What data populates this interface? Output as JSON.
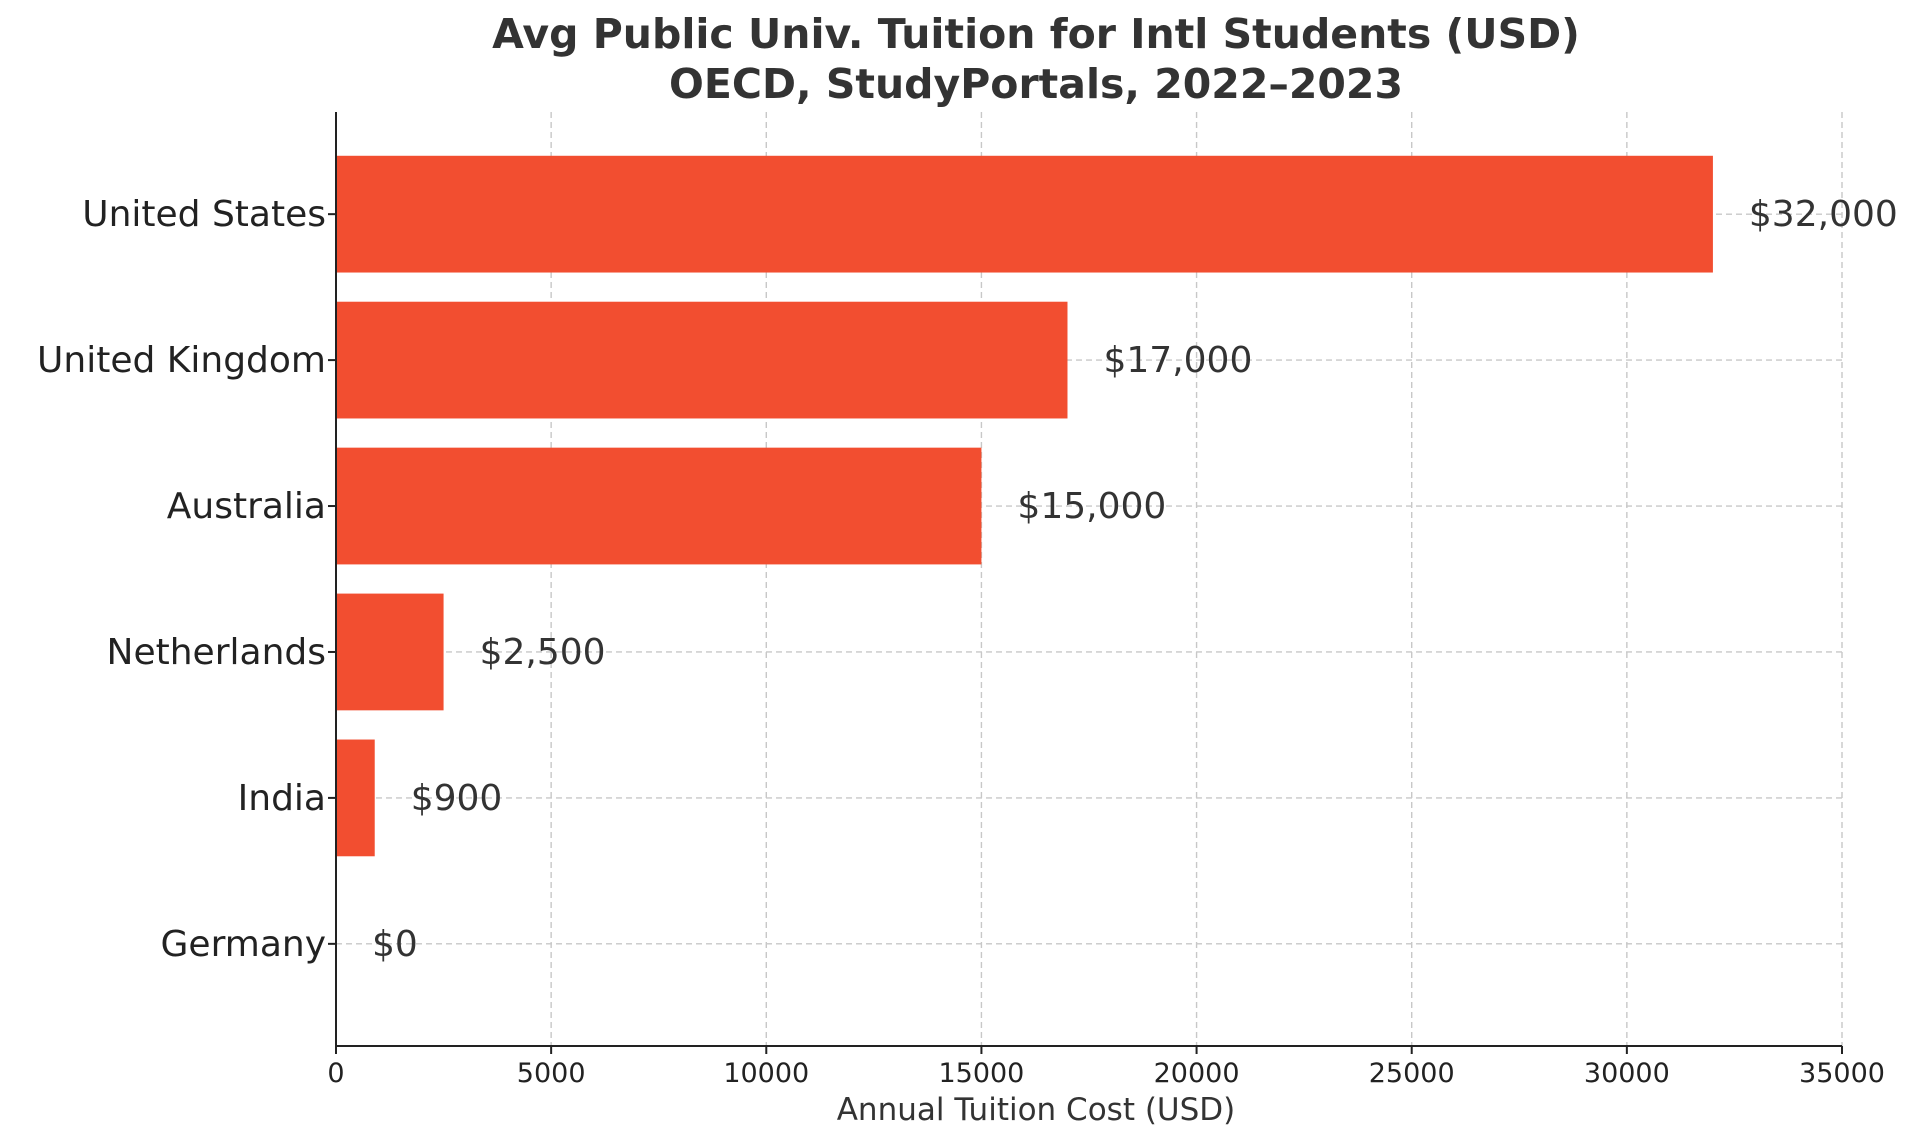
{
  "chart_data": {
    "type": "bar",
    "orientation": "horizontal",
    "title": "Avg Public Univ. Tuition for Intl Students (USD)",
    "subtitle": "OECD, StudyPortals, 2022–2023",
    "xlabel": "Annual Tuition Cost (USD)",
    "ylabel": "",
    "xlim": [
      0,
      35000
    ],
    "xticks": [
      0,
      5000,
      10000,
      15000,
      20000,
      25000,
      30000,
      35000
    ],
    "xtick_labels": [
      "0",
      "5000",
      "10000",
      "15000",
      "20000",
      "25000",
      "30000",
      "35000"
    ],
    "categories": [
      "United States",
      "United Kingdom",
      "Australia",
      "Netherlands",
      "India",
      "Germany"
    ],
    "values": [
      32000,
      17000,
      15000,
      2500,
      900,
      0
    ],
    "data_labels": [
      "$32,000",
      "$17,000",
      "$15,000",
      "$2,500",
      "$900",
      "$0"
    ],
    "bar_color": "#f24e30",
    "grid": true
  }
}
